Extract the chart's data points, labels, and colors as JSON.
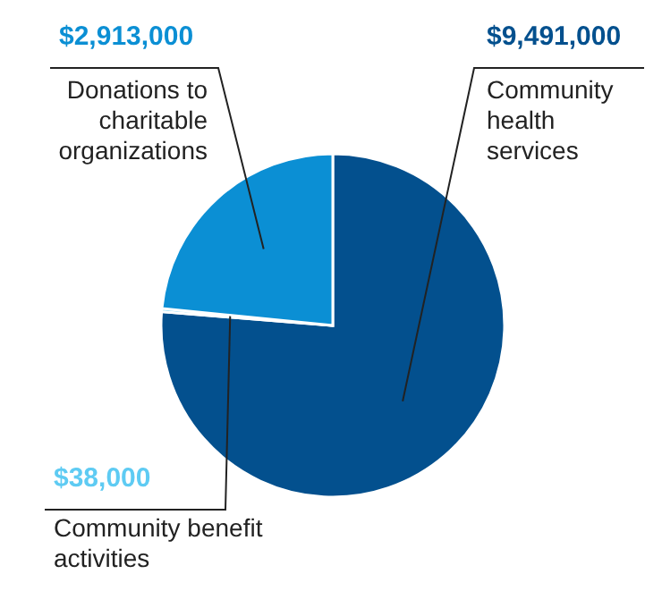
{
  "chart_data": {
    "type": "pie",
    "categories": [
      "Community health services",
      "Community benefit activities",
      "Donations to charitable organizations"
    ],
    "values": [
      9491000,
      38000,
      2913000
    ],
    "colors": [
      "#03508e",
      "#5ecbf3",
      "#0b8fd4"
    ],
    "value_labels": [
      "$9,491,000",
      "$38,000",
      "$2,913,000"
    ],
    "legend": false
  }
}
